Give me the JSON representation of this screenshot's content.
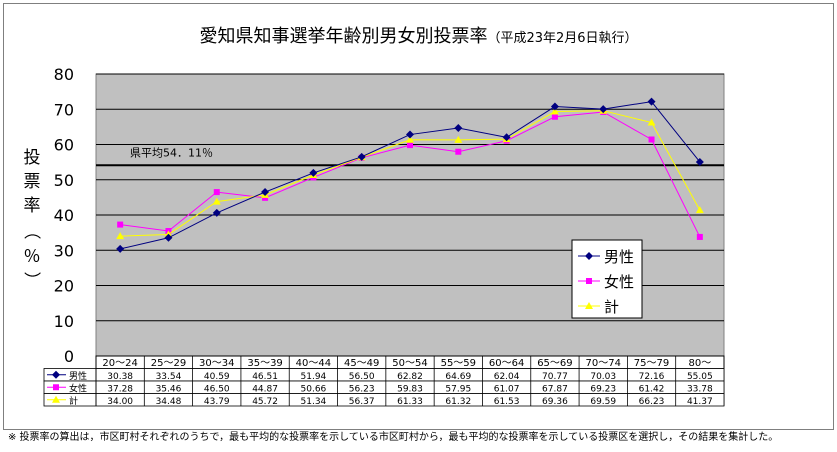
{
  "title": {
    "main": "愛知県知事選挙年齢別男女別投票率",
    "sub": "（平成23年2月6日執行）"
  },
  "note": "※ 投票率の算出は，市区町村それぞれのうちで，最も平均的な投票率を示している市区町村から，最も平均的な投票率を示している投票区を選択し，その結果を集計した。",
  "colors": {
    "plot_background": "#c0c0c0",
    "male": "#000080",
    "female": "#ff00ff",
    "total": "#ffff00"
  },
  "chart_data": {
    "type": "line",
    "ylabel": "投票率（％）",
    "ylim": [
      0,
      80
    ],
    "yticks": [
      0,
      10,
      20,
      30,
      40,
      50,
      60,
      70,
      80
    ],
    "grid": true,
    "legend_position": "right",
    "categories": [
      "20～24",
      "25～29",
      "30～34",
      "35～39",
      "40～44",
      "45～49",
      "50～54",
      "55～59",
      "60～64",
      "65～69",
      "70～74",
      "75～79",
      "80～"
    ],
    "series": [
      {
        "name": "男性",
        "values": [
          30.38,
          33.54,
          40.59,
          46.51,
          51.94,
          56.5,
          62.82,
          64.69,
          62.04,
          70.77,
          70.03,
          72.16,
          55.05
        ],
        "display": [
          "30.38",
          "33.54",
          "40.59",
          "46.51",
          "51.94",
          "56.50",
          "62.82",
          "64.69",
          "62.04",
          "70.77",
          "70.03",
          "72.16",
          "55.05"
        ]
      },
      {
        "name": "女性",
        "values": [
          37.28,
          35.46,
          46.5,
          44.87,
          50.66,
          56.23,
          59.83,
          57.95,
          61.07,
          67.87,
          69.23,
          61.42,
          33.78
        ],
        "display": [
          "37.28",
          "35.46",
          "46.50",
          "44.87",
          "50.66",
          "56.23",
          "59.83",
          "57.95",
          "61.07",
          "67.87",
          "69.23",
          "61.42",
          "33.78"
        ]
      },
      {
        "name": "計",
        "values": [
          34.0,
          34.48,
          43.79,
          45.72,
          51.34,
          56.37,
          61.33,
          61.32,
          61.53,
          69.36,
          69.59,
          66.23,
          41.37
        ],
        "display": [
          "34.00",
          "34.48",
          "43.79",
          "45.72",
          "51.34",
          "56.37",
          "61.33",
          "61.32",
          "61.53",
          "69.36",
          "69.59",
          "66.23",
          "41.37"
        ]
      }
    ],
    "reference_line": {
      "label": "県平均54．11％",
      "value": 54.11
    }
  }
}
